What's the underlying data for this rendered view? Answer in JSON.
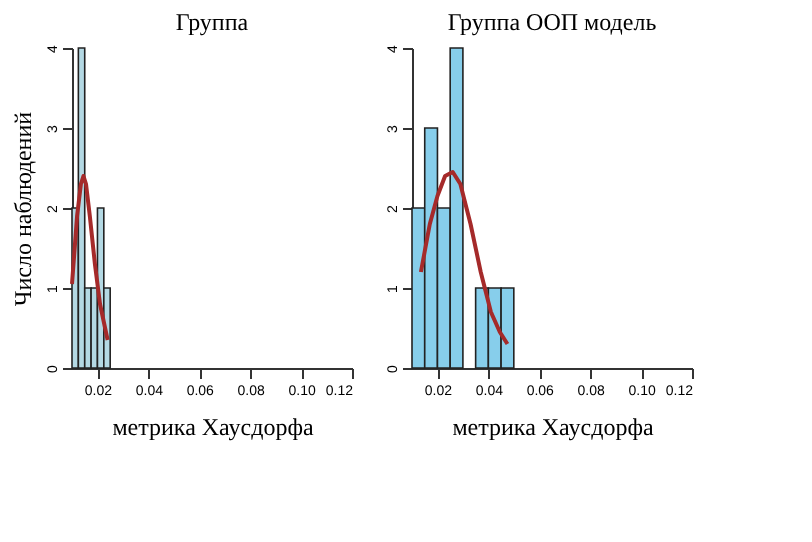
{
  "chart_data": [
    {
      "type": "histogram",
      "title": "Группа",
      "xlabel": "метрика Хаусдорфа",
      "ylabel": "Число наблюдений",
      "bins": [
        0.01,
        0.0125,
        0.015,
        0.0175,
        0.02,
        0.0225,
        0.025
      ],
      "values": [
        2,
        4,
        1,
        1,
        2,
        1
      ],
      "color": "#b4d9e4",
      "xlim": [
        0.01,
        0.12
      ],
      "xticks": [
        0.02,
        0.04,
        0.06,
        0.08,
        {
          "value": 0.1,
          "label": "0.10"
        },
        0.12
      ],
      "ylim": [
        0,
        4
      ],
      "yticks": [
        0,
        1,
        2,
        3,
        4
      ],
      "grid": false,
      "series": [
        {
          "type": "line",
          "color": "#a52a2a",
          "x": [
            0.01,
            0.012,
            0.0135,
            0.0145,
            0.0155,
            0.017,
            0.019,
            0.021,
            0.024
          ],
          "values": [
            1.05,
            1.9,
            2.3,
            2.4,
            2.3,
            1.9,
            1.3,
            0.8,
            0.35
          ]
        }
      ]
    },
    {
      "type": "histogram",
      "title": "Группа ООП модель",
      "xlabel": "метрика Хаусдорфа",
      "bins": [
        0.01,
        0.015,
        0.02,
        0.025,
        0.03,
        0.035,
        0.04,
        0.045,
        0.05
      ],
      "values": [
        2,
        3,
        2,
        4,
        0,
        1,
        1,
        1
      ],
      "color": "#87ceeb",
      "xlim": [
        0.01,
        0.12
      ],
      "xticks": [
        0.02,
        0.04,
        0.06,
        0.08,
        {
          "value": 0.1,
          "label": "0.10"
        },
        0.12
      ],
      "ylim": [
        0,
        4
      ],
      "yticks": [
        0,
        1,
        2,
        3,
        4
      ],
      "grid": false,
      "series": [
        {
          "type": "line",
          "color": "#a52a2a",
          "x": [
            0.0135,
            0.017,
            0.02,
            0.023,
            0.026,
            0.029,
            0.033,
            0.037,
            0.041,
            0.0445,
            0.0475
          ],
          "values": [
            1.2,
            1.8,
            2.15,
            2.4,
            2.45,
            2.3,
            1.8,
            1.2,
            0.7,
            0.45,
            0.3
          ]
        }
      ]
    }
  ]
}
